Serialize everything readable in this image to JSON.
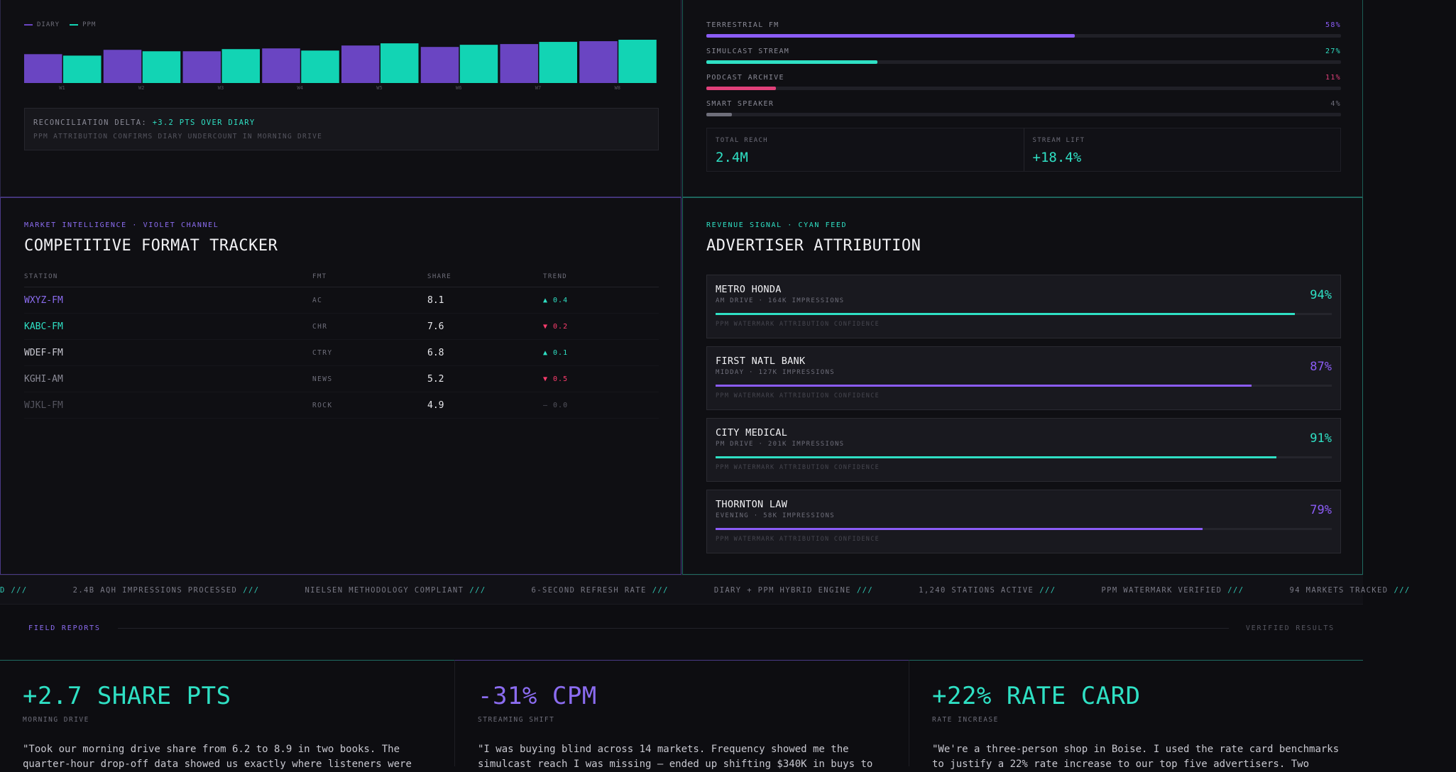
{
  "bar_chart": {
    "legend": [
      {
        "label": "DIARY",
        "color": "#6a45c2"
      },
      {
        "label": "PPM",
        "color": "#12d4b4"
      }
    ],
    "chart_data": {
      "type": "bar",
      "categories": [
        "W1",
        "W2",
        "W3",
        "W4",
        "W5",
        "W6",
        "W7",
        "W8"
      ],
      "series": [
        {
          "name": "DIARY",
          "values": [
            40,
            46,
            44,
            48,
            52,
            50,
            54,
            58
          ],
          "color": "#6a45c2"
        },
        {
          "name": "PPM",
          "values": [
            38,
            44,
            47,
            45,
            55,
            53,
            57,
            60
          ],
          "color": "#12d4b4"
        }
      ],
      "ylim": [
        0,
        60
      ]
    }
  },
  "reconciliation": {
    "prefix": "RECONCILIATION DELTA:",
    "highlight": "+3.2 PTS OVER DIARY",
    "note": "PPM ATTRIBUTION CONFIRMS DIARY UNDERCOUNT IN MORNING DRIVE"
  },
  "reach": {
    "rows": [
      {
        "label": "TERRESTRIAL FM",
        "pct_text": "58%",
        "value": 58,
        "color": "#8b5cf6"
      },
      {
        "label": "SIMULCAST STREAM",
        "pct_text": "27%",
        "value": 27,
        "color": "#2fe0c4"
      },
      {
        "label": "PODCAST ARCHIVE",
        "pct_text": "11%",
        "value": 11,
        "color": "#e0407a"
      },
      {
        "label": "SMART SPEAKER",
        "pct_text": "4%",
        "value": 4,
        "color": "#6e6e7a"
      }
    ],
    "stats": [
      {
        "label": "TOTAL REACH",
        "value": "2.4M"
      },
      {
        "label": "STREAM LIFT",
        "value": "+18.4%"
      }
    ]
  },
  "tracker": {
    "eyebrow": "MARKET INTELLIGENCE · VIOLET CHANNEL",
    "title": "COMPETITIVE FORMAT TRACKER",
    "headers": [
      "STATION",
      "FMT",
      "SHARE",
      "TREND"
    ],
    "rows": [
      {
        "station": "WXYZ-FM",
        "fmt": "AC",
        "share": "8.1",
        "trend": "▲ 0.4",
        "station_color": "#8b6cf0",
        "trend_color": "#2fe0c4"
      },
      {
        "station": "KABC-FM",
        "fmt": "CHR",
        "share": "7.6",
        "trend": "▼ 0.2",
        "station_color": "#2fe0c4",
        "trend_color": "#ff3d6e"
      },
      {
        "station": "WDEF-FM",
        "fmt": "CTRY",
        "share": "6.8",
        "trend": "▲ 0.1",
        "station_color": "#c9c9d2",
        "trend_color": "#2fe0c4"
      },
      {
        "station": "KGHI-AM",
        "fmt": "NEWS",
        "share": "5.2",
        "trend": "▼ 0.5",
        "station_color": "#8a8a96",
        "trend_color": "#ff3d6e"
      },
      {
        "station": "WJKL-FM",
        "fmt": "ROCK",
        "share": "4.9",
        "trend": "— 0.0",
        "station_color": "#55555f",
        "trend_color": "#55555f"
      }
    ]
  },
  "attribution": {
    "eyebrow": "REVENUE SIGNAL · CYAN FEED",
    "title": "ADVERTISER ATTRIBUTION",
    "cards": [
      {
        "name": "METRO HONDA",
        "sub": "AM DRIVE · 164K IMPRESSIONS",
        "pct_text": "94%",
        "value": 94,
        "color": "#2fe0c4",
        "note": "PPM WATERMARK ATTRIBUTION CONFIDENCE"
      },
      {
        "name": "FIRST NATL BANK",
        "sub": "MIDDAY · 127K IMPRESSIONS",
        "pct_text": "87%",
        "value": 87,
        "color": "#8b5cf6",
        "note": "PPM WATERMARK ATTRIBUTION CONFIDENCE"
      },
      {
        "name": "CITY MEDICAL",
        "sub": "PM DRIVE · 201K IMPRESSIONS",
        "pct_text": "91%",
        "value": 91,
        "color": "#2fe0c4",
        "note": "PPM WATERMARK ATTRIBUTION CONFIDENCE"
      },
      {
        "name": "THORNTON LAW",
        "sub": "EVENING · 58K IMPRESSIONS",
        "pct_text": "79%",
        "value": 79,
        "color": "#8b5cf6",
        "note": "PPM WATERMARK ATTRIBUTION CONFIDENCE"
      }
    ]
  },
  "ticker": {
    "lead_sep": "D ///",
    "separator": "///",
    "items": [
      "2.4B AQH IMPRESSIONS PROCESSED",
      "NIELSEN METHODOLOGY COMPLIANT",
      "6-SECOND REFRESH RATE",
      "DIARY + PPM HYBRID ENGINE",
      "1,240 STATIONS ACTIVE",
      "PPM WATERMARK VERIFIED",
      "94 MARKETS TRACKED"
    ]
  },
  "field": {
    "left": "FIELD REPORTS",
    "right": "VERIFIED RESULTS",
    "reports": [
      {
        "big": "+2.7 SHARE PTS",
        "cap": "MORNING DRIVE",
        "quote": "\"Took our morning drive share from 6.2 to 8.9 in two books. The quarter-hour drop-off data showed us exactly where listeners were",
        "color": "#2fe0c4",
        "border": "#1f6b62"
      },
      {
        "big": "-31% CPM",
        "cap": "STREAMING SHIFT",
        "quote": "\"I was buying blind across 14 markets. Frequency showed me the simulcast reach I was missing — ended up shifting $340K in buys to",
        "color": "#8b6cf0",
        "border": "#4a3a86"
      },
      {
        "big": "+22% RATE CARD",
        "cap": "RATE INCREASE",
        "quote": "\"We're a three-person shop in Boise. I used the rate card benchmarks to justify a 22% rate increase to our top five advertisers. Two",
        "color": "#2fe0c4",
        "border": "#1f6b62"
      }
    ]
  }
}
